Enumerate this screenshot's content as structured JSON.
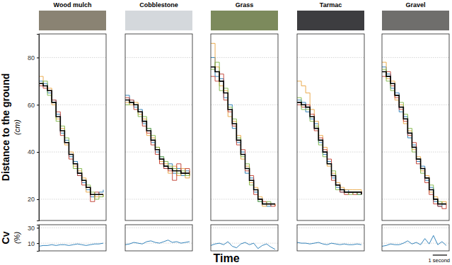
{
  "chart_data": [
    {
      "type": "line",
      "title": "Wood mulch",
      "y_label": "Distance to the ground",
      "y_label_unit": "(cm)",
      "line_style": "steps",
      "grid": true,
      "tick_labels": "y",
      "x": [
        0,
        0.3,
        0.6,
        0.9,
        1.2,
        1.5,
        1.8,
        2.1,
        2.4,
        2.7,
        3.0,
        3.3,
        3.6,
        3.9,
        4.2,
        4.5
      ],
      "xlim": [
        0,
        4.7
      ],
      "ylim": [
        11,
        90
      ],
      "yticks": [
        20,
        40,
        60,
        80
      ],
      "series": [
        {
          "color": "#1f77b4",
          "values": [
            70,
            69,
            65,
            62,
            56,
            48,
            45,
            38,
            36,
            30,
            27,
            24,
            21,
            22,
            23,
            24
          ]
        },
        {
          "color": "#e8a33d",
          "values": [
            72,
            68,
            67,
            60,
            54,
            50,
            43,
            40,
            34,
            32,
            29,
            23,
            22,
            21,
            22,
            21
          ]
        },
        {
          "color": "#c0392b",
          "values": [
            68,
            67,
            66,
            62,
            57,
            47,
            44,
            37,
            35,
            30,
            26,
            25,
            19,
            23,
            22,
            22
          ]
        },
        {
          "color": "#7cb342",
          "values": [
            69,
            70,
            64,
            61,
            53,
            51,
            46,
            39,
            33,
            33,
            28,
            26,
            23,
            20,
            21,
            22
          ]
        },
        {
          "color": "#000000",
          "values": [
            69,
            68,
            66,
            61,
            55,
            49,
            44,
            39,
            35,
            31,
            28,
            25,
            22,
            22,
            22,
            22
          ]
        }
      ]
    },
    {
      "type": "line",
      "title": "Cobblestone",
      "line_style": "steps",
      "grid": true,
      "tick_labels": false,
      "x": [
        0,
        0.3,
        0.6,
        0.9,
        1.2,
        1.5,
        1.8,
        2.1,
        2.4,
        2.7,
        3.0,
        3.3,
        3.6,
        3.9,
        4.2,
        4.5
      ],
      "xlim": [
        0,
        4.7
      ],
      "ylim": [
        11,
        90
      ],
      "yticks": [
        20,
        40,
        60,
        80
      ],
      "series": [
        {
          "color": "#1f77b4",
          "values": [
            64,
            62,
            59,
            58,
            52,
            50,
            44,
            40,
            38,
            33,
            35,
            31,
            33,
            30,
            32,
            30
          ]
        },
        {
          "color": "#e8a33d",
          "values": [
            61,
            60,
            61,
            56,
            54,
            47,
            46,
            42,
            36,
            35,
            31,
            34,
            30,
            33,
            29,
            32
          ]
        },
        {
          "color": "#c0392b",
          "values": [
            63,
            62,
            58,
            57,
            51,
            48,
            43,
            39,
            35,
            33,
            32,
            28,
            35,
            31,
            33,
            30
          ]
        },
        {
          "color": "#7cb342",
          "values": [
            60,
            61,
            60,
            55,
            55,
            50,
            47,
            42,
            38,
            36,
            34,
            33,
            31,
            32,
            30,
            31
          ]
        },
        {
          "color": "#000000",
          "values": [
            62,
            61,
            60,
            57,
            53,
            49,
            45,
            41,
            37,
            34,
            33,
            32,
            32,
            31,
            31,
            31
          ]
        }
      ]
    },
    {
      "type": "line",
      "title": "Grass",
      "line_style": "steps",
      "grid": true,
      "tick_labels": false,
      "x": [
        0,
        0.3,
        0.6,
        0.9,
        1.2,
        1.5,
        1.8,
        2.1,
        2.4,
        2.7,
        3.0,
        3.3,
        3.6,
        3.9,
        4.2,
        4.5
      ],
      "xlim": [
        0,
        4.7
      ],
      "ylim": [
        11,
        90
      ],
      "yticks": [
        20,
        40,
        60,
        80
      ],
      "series": [
        {
          "color": "#1f77b4",
          "values": [
            80,
            72,
            71,
            63,
            60,
            50,
            44,
            40,
            31,
            29,
            23,
            19,
            18,
            17,
            18,
            18
          ]
        },
        {
          "color": "#e8a33d",
          "values": [
            86,
            76,
            68,
            66,
            55,
            53,
            47,
            37,
            34,
            27,
            25,
            21,
            17,
            18,
            18,
            17
          ]
        },
        {
          "color": "#c0392b",
          "values": [
            72,
            70,
            73,
            62,
            57,
            51,
            43,
            41,
            32,
            30,
            22,
            20,
            19,
            18,
            17,
            18
          ]
        },
        {
          "color": "#7cb342",
          "values": [
            75,
            78,
            66,
            67,
            59,
            54,
            46,
            38,
            35,
            26,
            24,
            19,
            18,
            19,
            18,
            18
          ]
        },
        {
          "color": "#000000",
          "values": [
            76,
            74,
            70,
            65,
            58,
            52,
            45,
            39,
            33,
            28,
            24,
            20,
            18,
            18,
            18,
            18
          ]
        }
      ]
    },
    {
      "type": "line",
      "title": "Tarmac",
      "line_style": "steps",
      "grid": true,
      "tick_labels": false,
      "x": [
        0,
        0.3,
        0.6,
        0.9,
        1.2,
        1.5,
        1.8,
        2.1,
        2.4,
        2.7,
        3.0,
        3.3,
        3.6,
        3.9,
        4.2,
        4.5
      ],
      "xlim": [
        0,
        4.7
      ],
      "ylim": [
        11,
        90
      ],
      "yticks": [
        20,
        40,
        60,
        80
      ],
      "series": [
        {
          "color": "#1f77b4",
          "values": [
            62,
            61,
            57,
            54,
            52,
            44,
            39,
            36,
            29,
            25,
            23,
            24,
            23,
            23,
            22,
            22
          ]
        },
        {
          "color": "#e8a33d",
          "values": [
            70,
            68,
            65,
            58,
            53,
            47,
            42,
            34,
            31,
            27,
            25,
            24,
            24,
            24,
            24,
            23
          ]
        },
        {
          "color": "#c0392b",
          "values": [
            60,
            59,
            60,
            56,
            49,
            46,
            41,
            37,
            28,
            26,
            23,
            22,
            23,
            22,
            23,
            22
          ]
        },
        {
          "color": "#7cb342",
          "values": [
            63,
            58,
            58,
            53,
            51,
            43,
            38,
            35,
            32,
            24,
            24,
            23,
            22,
            23,
            22,
            22
          ]
        },
        {
          "color": "#000000",
          "values": [
            61,
            60,
            59,
            55,
            50,
            45,
            40,
            35,
            30,
            26,
            24,
            23,
            23,
            23,
            23,
            22
          ]
        }
      ]
    },
    {
      "type": "line",
      "title": "Gravel",
      "line_style": "steps",
      "grid": true,
      "tick_labels": false,
      "x": [
        0,
        0.3,
        0.6,
        0.9,
        1.2,
        1.5,
        1.8,
        2.1,
        2.4,
        2.7,
        3.0,
        3.3,
        3.6,
        3.9,
        4.2,
        4.5
      ],
      "xlim": [
        0,
        4.7
      ],
      "ylim": [
        11,
        90
      ],
      "yticks": [
        20,
        40,
        60,
        80
      ],
      "series": [
        {
          "color": "#1f77b4",
          "values": [
            76,
            73,
            67,
            65,
            57,
            55,
            46,
            43,
            36,
            34,
            28,
            25,
            19,
            17,
            18,
            18
          ]
        },
        {
          "color": "#e8a33d",
          "values": [
            78,
            71,
            70,
            62,
            60,
            52,
            49,
            41,
            38,
            32,
            30,
            23,
            21,
            18,
            19,
            18
          ]
        },
        {
          "color": "#c0392b",
          "values": [
            72,
            74,
            68,
            63,
            58,
            53,
            47,
            44,
            35,
            33,
            27,
            22,
            18,
            17,
            16,
            18
          ]
        },
        {
          "color": "#7cb342",
          "values": [
            75,
            70,
            66,
            64,
            61,
            56,
            50,
            40,
            37,
            31,
            29,
            26,
            20,
            19,
            18,
            18
          ]
        },
        {
          "color": "#000000",
          "values": [
            74,
            72,
            69,
            64,
            59,
            54,
            48,
            42,
            37,
            33,
            29,
            24,
            20,
            18,
            18,
            18
          ]
        }
      ]
    },
    {
      "type": "line",
      "y_label": "Cv",
      "y_label_unit": "(%)",
      "grid": true,
      "tick_labels": "y",
      "x": [
        0,
        0.3,
        0.6,
        0.9,
        1.2,
        1.5,
        1.8,
        2.1,
        2.4,
        2.7,
        3.0,
        3.3,
        3.6,
        3.9,
        4.2,
        4.5
      ],
      "xlim": [
        0,
        4.7
      ],
      "ylim": [
        0,
        34
      ],
      "yticks": [
        10,
        30
      ],
      "series": [
        {
          "color": "#1f77b4",
          "values": [
            6,
            7,
            7,
            8,
            7,
            8,
            8,
            7,
            8,
            9,
            8,
            7,
            8,
            9,
            9,
            10
          ]
        }
      ]
    },
    {
      "type": "line",
      "grid": true,
      "tick_labels": false,
      "x": [
        0,
        0.3,
        0.6,
        0.9,
        1.2,
        1.5,
        1.8,
        2.1,
        2.4,
        2.7,
        3.0,
        3.3,
        3.6,
        3.9,
        4.2,
        4.5
      ],
      "xlim": [
        0,
        4.7
      ],
      "ylim": [
        0,
        34
      ],
      "yticks": [
        10,
        30
      ],
      "series": [
        {
          "color": "#1f77b4",
          "values": [
            8,
            9,
            11,
            10,
            9,
            12,
            13,
            11,
            10,
            12,
            14,
            11,
            12,
            10,
            11,
            12
          ]
        }
      ]
    },
    {
      "type": "line",
      "grid": true,
      "tick_labels": false,
      "x": [
        0,
        0.3,
        0.6,
        0.9,
        1.2,
        1.5,
        1.8,
        2.1,
        2.4,
        2.7,
        3.0,
        3.3,
        3.6,
        3.9,
        4.2,
        4.5
      ],
      "xlim": [
        0,
        4.7
      ],
      "ylim": [
        0,
        34
      ],
      "yticks": [
        10,
        30
      ],
      "series": [
        {
          "color": "#1f77b4",
          "values": [
            7,
            9,
            10,
            8,
            12,
            6,
            4,
            9,
            11,
            8,
            10,
            3,
            7,
            9,
            5,
            2
          ]
        }
      ]
    },
    {
      "type": "line",
      "grid": true,
      "tick_labels": false,
      "x": [
        0,
        0.3,
        0.6,
        0.9,
        1.2,
        1.5,
        1.8,
        2.1,
        2.4,
        2.7,
        3.0,
        3.3,
        3.6,
        3.9,
        4.2,
        4.5
      ],
      "xlim": [
        0,
        4.7
      ],
      "ylim": [
        0,
        34
      ],
      "yticks": [
        10,
        30
      ],
      "series": [
        {
          "color": "#1f77b4",
          "values": [
            11,
            10,
            10,
            9,
            10,
            11,
            9,
            8,
            10,
            9,
            8,
            9,
            8,
            8,
            9,
            8
          ]
        }
      ]
    },
    {
      "type": "line",
      "grid": true,
      "tick_labels": false,
      "x": [
        0,
        0.3,
        0.6,
        0.9,
        1.2,
        1.5,
        1.8,
        2.1,
        2.4,
        2.7,
        3.0,
        3.3,
        3.6,
        3.9,
        4.2,
        4.5
      ],
      "xlim": [
        0,
        4.7
      ],
      "ylim": [
        0,
        34
      ],
      "yticks": [
        10,
        30
      ],
      "series": [
        {
          "color": "#1f77b4",
          "values": [
            6,
            7,
            9,
            8,
            8,
            10,
            13,
            9,
            11,
            8,
            16,
            9,
            20,
            8,
            12,
            7
          ]
        }
      ]
    }
  ],
  "x_label": "Time",
  "scale_bar": {
    "value": 1,
    "label": "1 second"
  }
}
